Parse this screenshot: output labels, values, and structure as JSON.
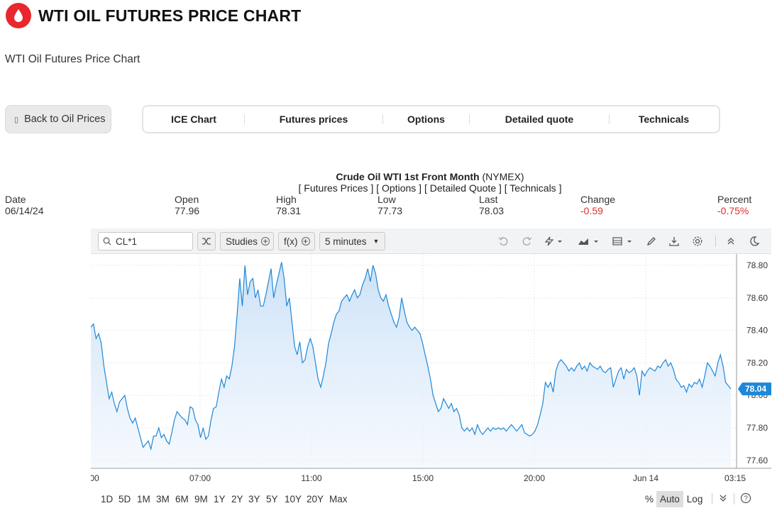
{
  "page": {
    "title": "WTI OIL FUTURES PRICE CHART",
    "subtitle": "WTI Oil Futures Price Chart",
    "back_label": "Back to Oil Prices",
    "tabs": [
      "ICE Chart",
      "Futures prices",
      "Options",
      "Detailed quote",
      "Technicals"
    ]
  },
  "quote": {
    "name": "Crude Oil WTI 1st Front Month",
    "exchange": "(NYMEX)",
    "links": [
      "[ Futures Prices ]",
      "[ Options ]",
      "[ Detailed Quote ]",
      "[ Technicals ]"
    ],
    "stats": [
      {
        "label": "Date",
        "value": "06/14/24",
        "negative": false
      },
      {
        "label": "Open",
        "value": "77.96",
        "negative": false
      },
      {
        "label": "High",
        "value": "78.31",
        "negative": false
      },
      {
        "label": "Low",
        "value": "77.73",
        "negative": false
      },
      {
        "label": "Last",
        "value": "78.03",
        "negative": false
      },
      {
        "label": "Change",
        "value": "-0.59",
        "negative": true
      },
      {
        "label": "Percent",
        "value": "-0.75%",
        "negative": true
      }
    ]
  },
  "toolbar": {
    "symbol": "CL*1",
    "studies_label": "Studies",
    "fx_label": "f(x)",
    "interval_label": "5 minutes",
    "icons": [
      "undo-icon",
      "redo-icon",
      "lightning-icon",
      "chart-type-icon",
      "layout-icon",
      "pencil-icon",
      "download-icon",
      "gear-icon",
      "collapse-icon",
      "moon-icon"
    ]
  },
  "ranges": [
    "1D",
    "5D",
    "1M",
    "3M",
    "6M",
    "9M",
    "1Y",
    "2Y",
    "3Y",
    "5Y",
    "10Y",
    "20Y",
    "Max"
  ],
  "scale_controls": {
    "percent": "%",
    "auto": "Auto",
    "log": "Log"
  },
  "colors": {
    "accent": "#e8272e",
    "line": "#1e88d8",
    "area_top": "#cfe4f8",
    "negative": "#e0302e",
    "price_tag": "#1e88d8"
  },
  "chart_data": {
    "type": "area",
    "x_tick_labels": [
      "00",
      "07:00",
      "11:00",
      "15:00",
      "20:00",
      "Jun 14",
      "03:15"
    ],
    "y_tick_labels": [
      "78.80",
      "78.60",
      "78.40",
      "78.20",
      "78.00",
      "77.80",
      "77.60"
    ],
    "ylim": [
      77.56,
      78.87
    ],
    "last_price_label": "78.04",
    "grid": true,
    "legend": "none",
    "series": [
      {
        "values": [
          78.42,
          78.44,
          78.35,
          78.38,
          78.32,
          78.18,
          78.08,
          77.98,
          78.02,
          77.95,
          77.9,
          77.96,
          77.98,
          78.0,
          77.92,
          77.86,
          77.83,
          77.86,
          77.8,
          77.74,
          77.68,
          77.7,
          77.72,
          77.67,
          77.75,
          77.75,
          77.8,
          77.74,
          77.76,
          77.72,
          77.7,
          77.77,
          77.85,
          77.9,
          77.88,
          77.86,
          77.85,
          77.82,
          77.93,
          77.92,
          77.85,
          77.82,
          77.74,
          77.8,
          77.73,
          77.75,
          77.85,
          77.92,
          77.93,
          78.02,
          78.1,
          78.05,
          78.12,
          78.1,
          78.18,
          78.3,
          78.5,
          78.72,
          78.55,
          78.8,
          78.62,
          78.7,
          78.72,
          78.6,
          78.65,
          78.55,
          78.55,
          78.62,
          78.7,
          78.78,
          78.6,
          78.68,
          78.75,
          78.82,
          78.72,
          78.55,
          78.6,
          78.45,
          78.3,
          78.25,
          78.33,
          78.2,
          78.22,
          78.3,
          78.35,
          78.3,
          78.2,
          78.1,
          78.05,
          78.12,
          78.2,
          78.32,
          78.38,
          78.45,
          78.5,
          78.52,
          78.58,
          78.6,
          78.62,
          78.58,
          78.62,
          78.65,
          78.6,
          78.62,
          78.68,
          78.72,
          78.78,
          78.7,
          78.8,
          78.75,
          78.65,
          78.6,
          78.58,
          78.62,
          78.55,
          78.5,
          78.45,
          78.42,
          78.48,
          78.6,
          78.52,
          78.45,
          78.42,
          78.4,
          78.42,
          78.4,
          78.38,
          78.32,
          78.25,
          78.18,
          78.1,
          78.0,
          77.95,
          77.9,
          77.92,
          77.98,
          77.95,
          77.92,
          77.95,
          77.9,
          77.92,
          77.88,
          77.8,
          77.78,
          77.8,
          77.78,
          77.8,
          77.76,
          77.82,
          77.78,
          77.76,
          77.78,
          77.8,
          77.78,
          77.8,
          77.79,
          77.8,
          77.79,
          77.8,
          77.78,
          77.8,
          77.82,
          77.8,
          77.78,
          77.8,
          77.82,
          77.77,
          77.76,
          77.75,
          77.76,
          77.78,
          77.82,
          77.88,
          77.95,
          78.08,
          78.05,
          78.08,
          78.02,
          78.15,
          78.2,
          78.22,
          78.2,
          78.18,
          78.15,
          78.17,
          78.15,
          78.18,
          78.2,
          78.16,
          78.18,
          78.15,
          78.2,
          78.18,
          78.17,
          78.16,
          78.18,
          78.15,
          78.14,
          78.16,
          78.17,
          78.05,
          78.1,
          78.15,
          78.17,
          78.1,
          78.16,
          78.14,
          78.15,
          78.17,
          78.12,
          78.0,
          78.15,
          78.12,
          78.15,
          78.17,
          78.16,
          78.15,
          78.18,
          78.17,
          78.2,
          78.22,
          78.18,
          78.2,
          78.16,
          78.1,
          78.08,
          78.05,
          78.06,
          78.02,
          78.07,
          78.05,
          78.08,
          78.07,
          78.1,
          78.05,
          78.12,
          78.2,
          78.18,
          78.15,
          78.12,
          78.2,
          78.25,
          78.18,
          78.08,
          78.06,
          78.04
        ]
      }
    ]
  }
}
